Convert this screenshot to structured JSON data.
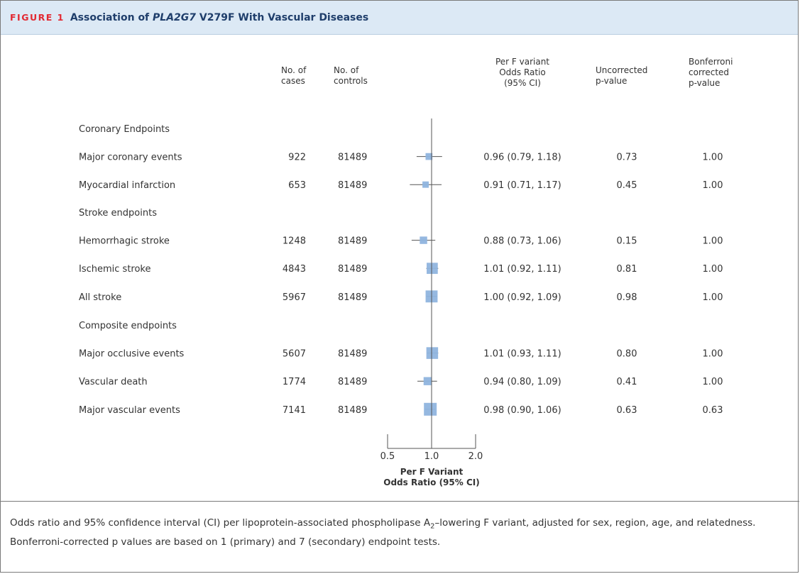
{
  "figure": {
    "label": "FIGURE 1",
    "title_pre": "Association of ",
    "title_gene": "PLA2G7",
    "title_post": " V279F With Vascular Diseases"
  },
  "columns": {
    "cases": [
      "No. of",
      "cases"
    ],
    "controls": [
      "No. of",
      "controls"
    ],
    "or": [
      "Per F variant",
      "Odds Ratio",
      "(95% CI)"
    ],
    "uncorrected": [
      "Uncorrected",
      "p-value"
    ],
    "bonferroni": [
      "Bonferroni",
      "corrected",
      "p-value"
    ]
  },
  "caption": {
    "part1": "Odds ratio and 95% confidence interval (CI) per lipoprotein-associated phospholipase A",
    "sub": "2",
    "part2": "–lowering F variant, adjusted for sex, region, age, and relatedness. Bonferroni-corrected p values are based on 1 (primary) and 7 (secondary) endpoint tests."
  },
  "chart_data": {
    "type": "forest",
    "x_scale": "log",
    "xlim": [
      0.5,
      2.0
    ],
    "xticks": [
      0.5,
      1.0,
      2.0
    ],
    "xtick_labels": [
      "0.5",
      "1.0",
      "2.0"
    ],
    "reference_line": 1.0,
    "xlabel": [
      "Per F Variant",
      "Odds Ratio (95% CI)"
    ],
    "groups": [
      {
        "name": "Coronary Endpoints",
        "rows": [
          {
            "label": "Major coronary events",
            "cases": "922",
            "controls": "81489",
            "or": 0.96,
            "lo": 0.79,
            "hi": 1.18,
            "or_text": "0.96 (0.79, 1.18)",
            "p": "0.73",
            "p_bonf": "1.00"
          },
          {
            "label": "Myocardial infarction",
            "cases": "653",
            "controls": "81489",
            "or": 0.91,
            "lo": 0.71,
            "hi": 1.17,
            "or_text": "0.91 (0.71, 1.17)",
            "p": "0.45",
            "p_bonf": "1.00"
          }
        ]
      },
      {
        "name": "Stroke endpoints",
        "rows": [
          {
            "label": "Hemorrhagic stroke",
            "cases": "1248",
            "controls": "81489",
            "or": 0.88,
            "lo": 0.73,
            "hi": 1.06,
            "or_text": "0.88 (0.73, 1.06)",
            "p": "0.15",
            "p_bonf": "1.00"
          },
          {
            "label": "Ischemic stroke",
            "cases": "4843",
            "controls": "81489",
            "or": 1.01,
            "lo": 0.92,
            "hi": 1.11,
            "or_text": "1.01 (0.92, 1.11)",
            "p": "0.81",
            "p_bonf": "1.00"
          },
          {
            "label": "All stroke",
            "cases": "5967",
            "controls": "81489",
            "or": 1.0,
            "lo": 0.92,
            "hi": 1.09,
            "or_text": "1.00 (0.92, 1.09)",
            "p": "0.98",
            "p_bonf": "1.00"
          }
        ]
      },
      {
        "name": "Composite endpoints",
        "rows": [
          {
            "label": "Major occlusive events",
            "cases": "5607",
            "controls": "81489",
            "or": 1.01,
            "lo": 0.93,
            "hi": 1.11,
            "or_text": "1.01 (0.93, 1.11)",
            "p": "0.80",
            "p_bonf": "1.00"
          },
          {
            "label": "Vascular death",
            "cases": "1774",
            "controls": "81489",
            "or": 0.94,
            "lo": 0.8,
            "hi": 1.09,
            "or_text": "0.94 (0.80, 1.09)",
            "p": "0.41",
            "p_bonf": "1.00"
          },
          {
            "label": "Major vascular events",
            "cases": "7141",
            "controls": "81489",
            "or": 0.98,
            "lo": 0.9,
            "hi": 1.06,
            "or_text": "0.98 (0.90, 1.06)",
            "p": "0.63",
            "p_bonf": "0.63"
          }
        ]
      }
    ],
    "colors": {
      "marker": "#8fb4de",
      "line": "#555555",
      "axis": "#555555"
    }
  }
}
